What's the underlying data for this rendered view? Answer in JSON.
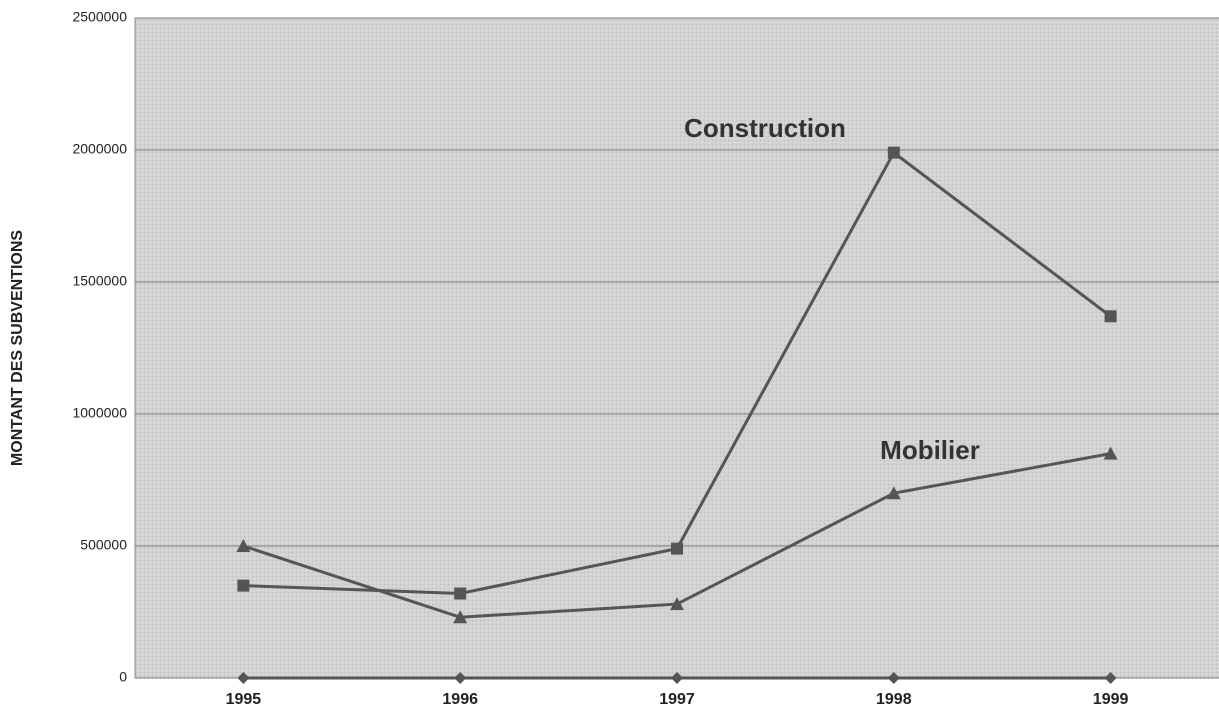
{
  "chart_data": {
    "type": "line",
    "y_label": "MONTANT DES SUBVENTIONS",
    "categories": [
      "1995",
      "1996",
      "1997",
      "1998",
      "1999"
    ],
    "series": [
      {
        "name": "Construction",
        "color": "#555555",
        "marker": "square",
        "values": [
          350000,
          320000,
          490000,
          1990000,
          1370000
        ]
      },
      {
        "name": "Mobilier",
        "color": "#555555",
        "marker": "triangle",
        "values": [
          500000,
          230000,
          280000,
          700000,
          850000
        ]
      },
      {
        "color": "#555555",
        "marker": "diamond",
        "values": [
          0,
          0,
          0,
          0,
          0
        ]
      }
    ],
    "ylim": [
      0,
      2500000
    ],
    "yticks": [
      0,
      500000,
      1000000,
      1500000,
      2000000,
      2500000
    ],
    "grid": true
  }
}
